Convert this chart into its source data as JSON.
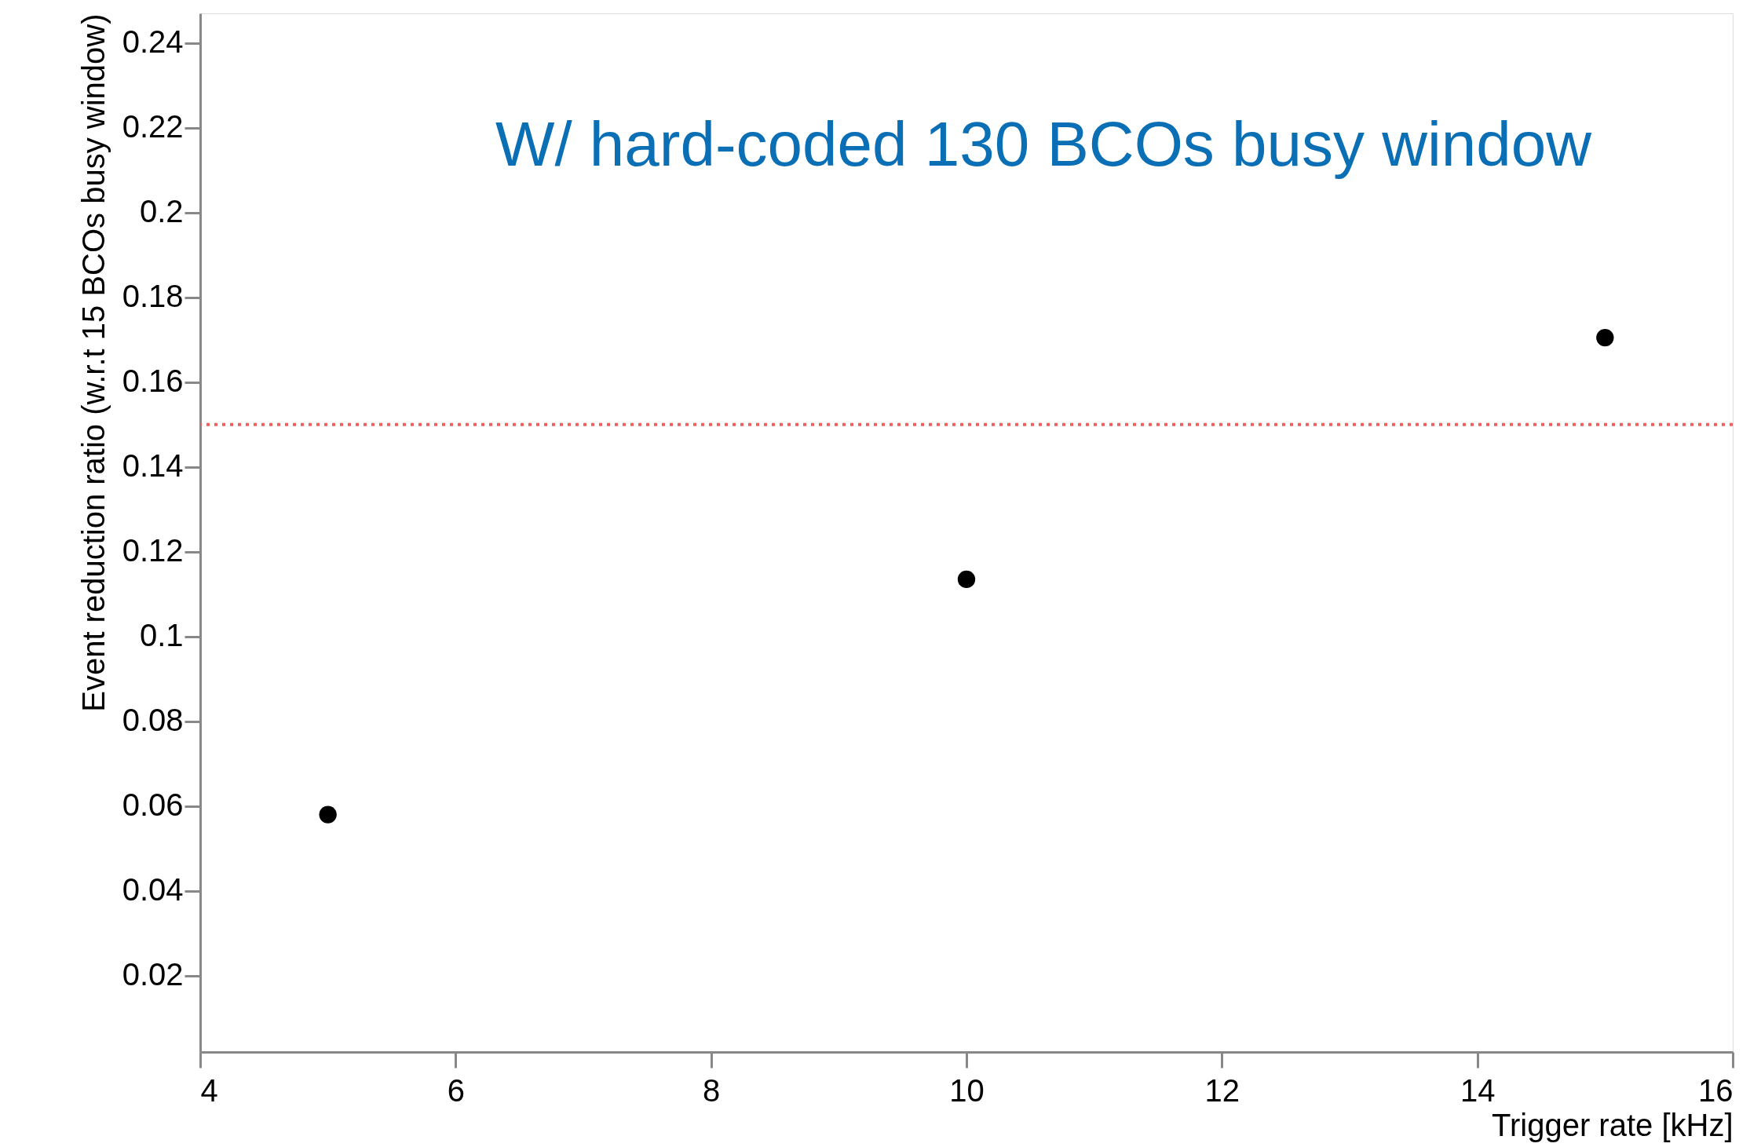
{
  "chart_data": {
    "type": "scatter",
    "xlabel": "Trigger rate [kHz]",
    "ylabel": "Event reduction ratio (w.r.t 15 BCOs busy window)",
    "annotations": [
      "W/ hard-coded 130 BCOs busy window"
    ],
    "x": [
      5,
      10,
      15
    ],
    "series": [
      {
        "color": "#000000",
        "values": [
          0.058,
          0.1135,
          0.1705
        ]
      }
    ],
    "marker": "circle",
    "xlim": [
      4,
      16
    ],
    "ylim": [
      0.002,
      0.247
    ],
    "xticks": [
      4,
      6,
      8,
      10,
      12,
      14,
      16
    ],
    "yticks": [
      0.02,
      0.04,
      0.06,
      0.08,
      0.1,
      0.12,
      0.14,
      0.16,
      0.18,
      0.2,
      0.22,
      0.24
    ],
    "ref_lines": [
      {
        "axis": "y",
        "value": 0.15,
        "color": "#f06060",
        "line_style": "dotted"
      }
    ],
    "grid": false
  }
}
